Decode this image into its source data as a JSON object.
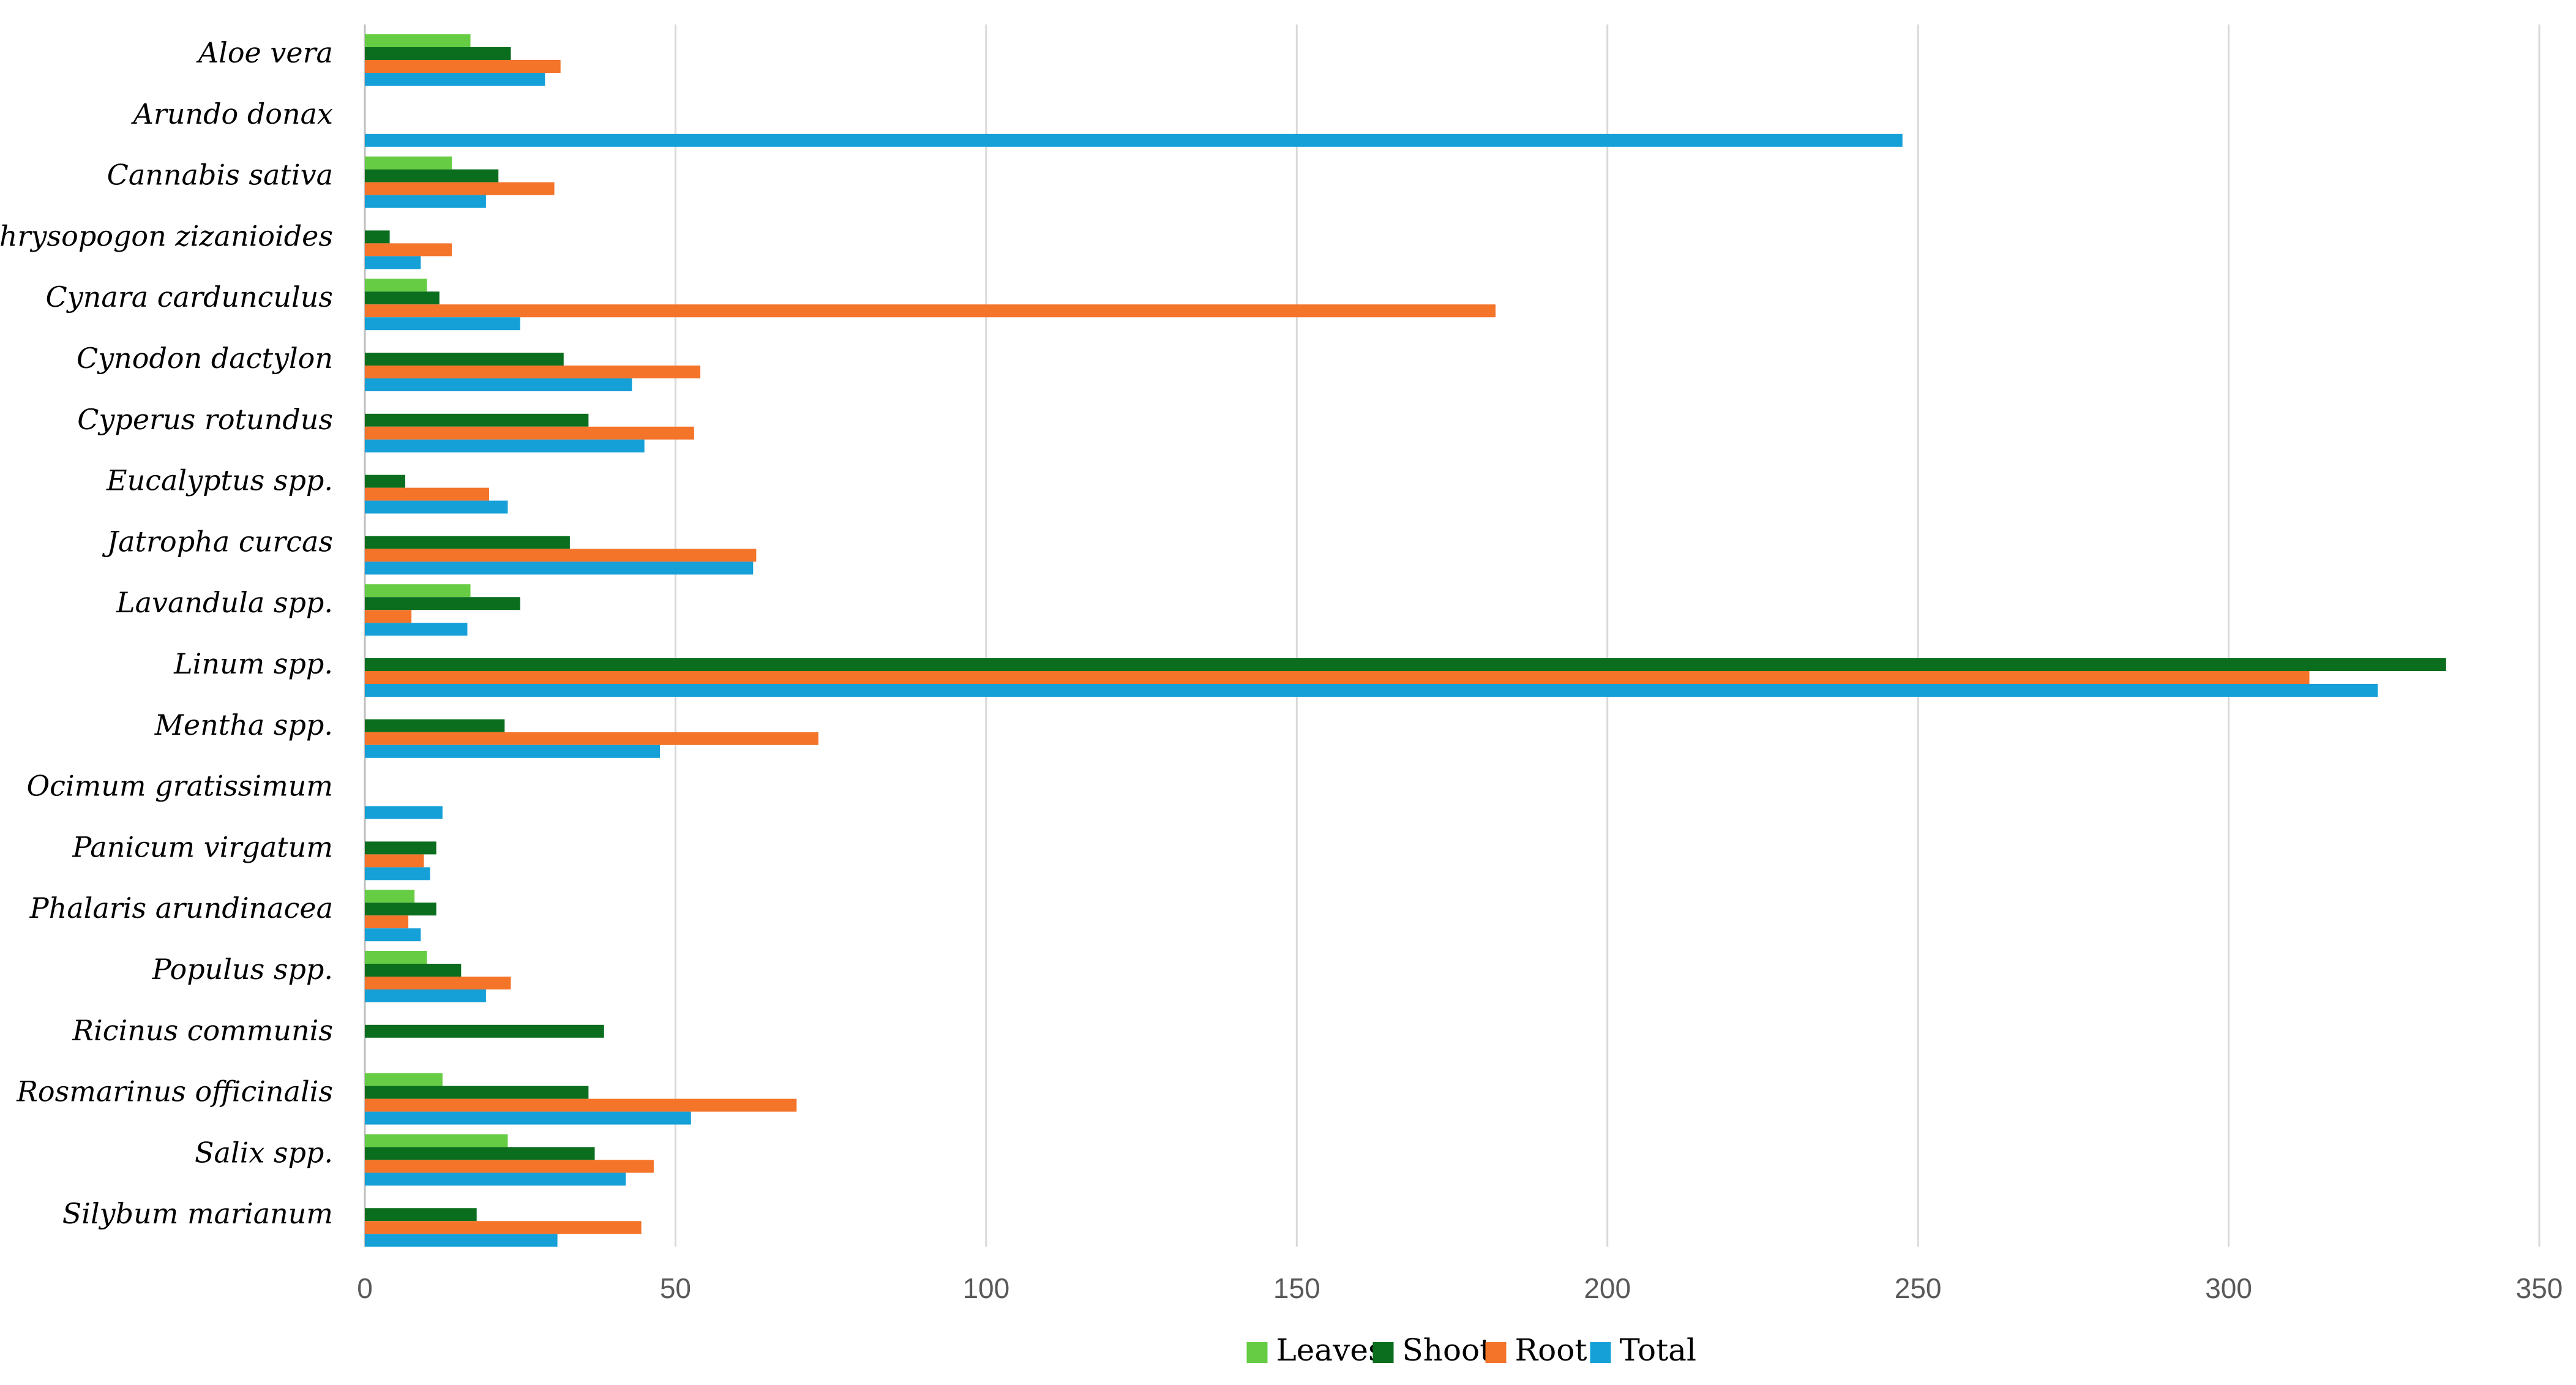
{
  "chart_data": {
    "type": "bar",
    "orientation": "horizontal",
    "categories": [
      "Aloe vera",
      "Arundo donax",
      "Cannabis sativa",
      "Chrysopogon zizanioides",
      "Cynara cardunculus",
      "Cynodon dactylon",
      "Cyperus rotundus",
      "Eucalyptus spp.",
      "Jatropha curcas",
      "Lavandula spp.",
      "Linum spp.",
      "Mentha spp.",
      "Ocimum gratissimum",
      "Panicum virgatum",
      "Phalaris arundinacea",
      "Populus spp.",
      "Ricinus communis",
      "Rosmarinus officinalis",
      "Salix spp.",
      "Silybum marianum"
    ],
    "series": [
      {
        "name": "Leaves",
        "color": "#66cc44",
        "values": [
          17,
          0,
          14,
          0,
          10,
          0,
          0,
          0,
          0,
          17,
          0,
          0,
          0,
          0,
          8,
          10,
          0,
          12.5,
          23,
          0
        ]
      },
      {
        "name": "Shoot",
        "color": "#0a6e1e",
        "values": [
          23.5,
          0,
          21.5,
          4,
          12,
          32,
          36,
          6.5,
          33,
          25,
          335,
          22.5,
          0,
          11.5,
          11.5,
          15.5,
          38.5,
          36,
          37,
          18
        ]
      },
      {
        "name": "Root",
        "color": "#f4742a",
        "values": [
          31.5,
          0,
          30.5,
          14,
          182,
          54,
          53,
          20,
          63,
          7.5,
          313,
          73,
          0,
          9.5,
          7,
          23.5,
          0,
          69.5,
          46.5,
          44.5
        ]
      },
      {
        "name": "Total",
        "color": "#16a0d8",
        "values": [
          29,
          247.5,
          19.5,
          9,
          25,
          43,
          45,
          23,
          62.5,
          16.5,
          324,
          47.5,
          12.5,
          10.5,
          9,
          19.5,
          0,
          52.5,
          42,
          31
        ]
      }
    ],
    "xlim": [
      0,
      350
    ],
    "xticks": [
      0,
      50,
      100,
      150,
      200,
      250,
      300,
      350
    ],
    "grid": "vertical",
    "legend": "bottom-center"
  }
}
